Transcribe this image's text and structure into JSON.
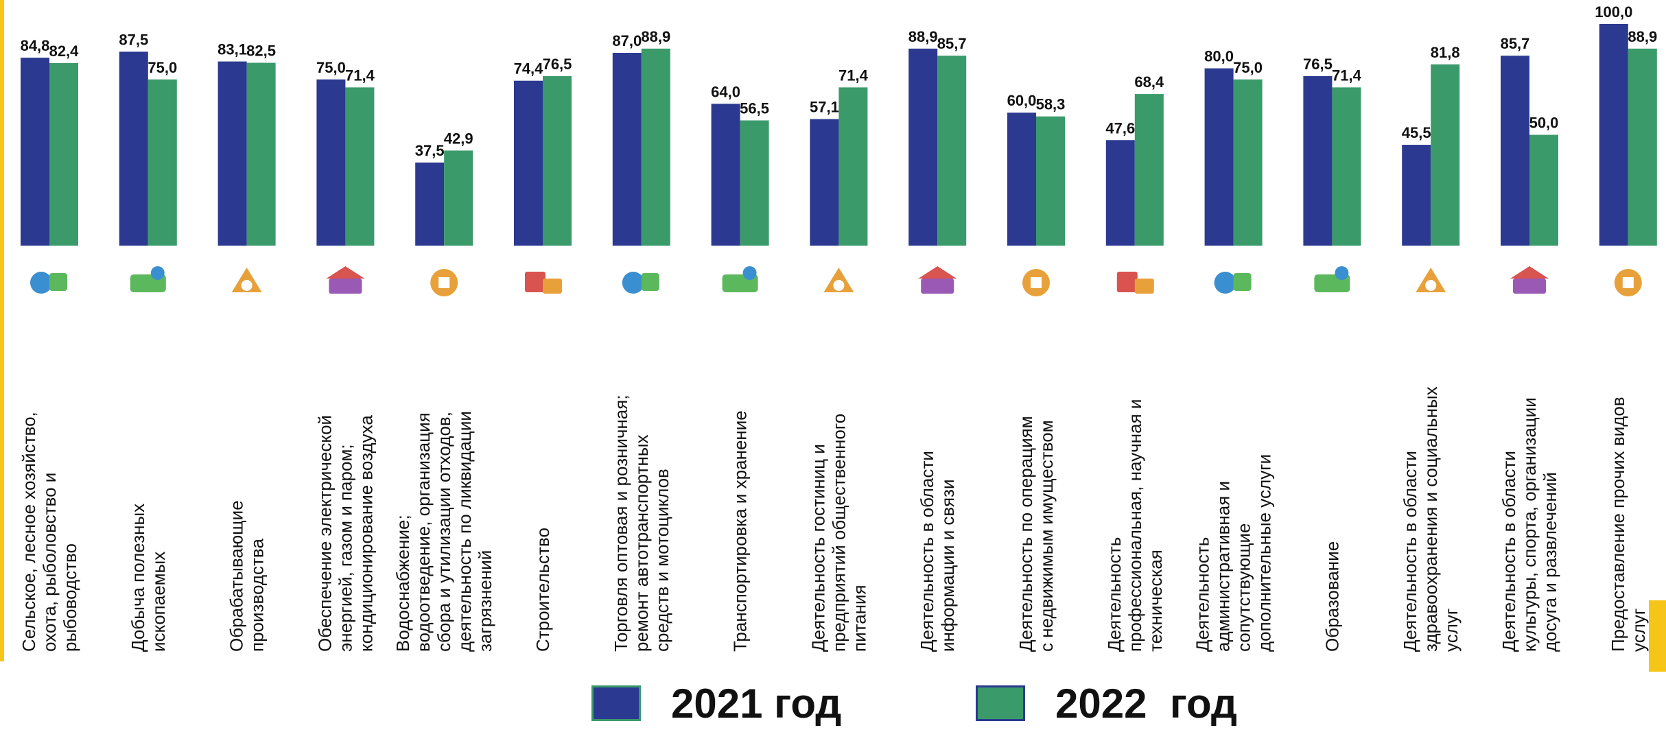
{
  "chart_data": {
    "type": "bar",
    "ylim": [
      0,
      100
    ],
    "categories": [
      "Сельское, лесное хозяйство, охота, рыболовство и рыбоводство",
      "Добыча полезных ископаемых",
      "Обрабатывающие производства",
      "Обеспечение электрической энергией, газом и паром; кондиционирование воздуха",
      "Водоснабжение; водоотведение, организация сбора и утилизации отходов, деятельность по ликвидации загрязнений",
      "Строительство",
      "Торговля оптовая и розничная; ремонт автотранспортных средств и мотоциклов",
      "Транспортировка и хранение",
      "Деятельность гостиниц и предприятий общественного питания",
      "Деятельность в области информации и связи",
      "Деятельность по операциям с недвижимым имуществом",
      "Деятельность профессиональная, научная и техническая",
      "Деятельность административная и сопутствующие дополнительные услуги",
      "Образование",
      "Деятельность в области здравоохранения и социальных услуг",
      "Деятельность в области культуры, спорта, организации досуга и развлечений",
      "Предоставление прочих видов услуг"
    ],
    "category_lines": [
      [
        "Сельское, лесное хозяйство,",
        "охота, рыболовство и",
        "рыбоводство"
      ],
      [
        "Добыча полезных",
        "ископаемых"
      ],
      [
        "Обрабатывающие",
        "производства"
      ],
      [
        "Обеспечение электрической",
        "энергией, газом и паром;",
        "кондиционирование воздуха"
      ],
      [
        "Водоснабжение;",
        "водоотведение, организация",
        "сбора и утилизации отходов,",
        "деятельность по ликвидации",
        "загрязнений"
      ],
      [
        "Строительство"
      ],
      [
        "Торговля оптовая и розничная;",
        "ремонт автотранспортных",
        "средств и мотоциклов"
      ],
      [
        "Транспортировка и хранение"
      ],
      [
        "Деятельность гостиниц и",
        "предприятий общественного",
        "питания"
      ],
      [
        "Деятельность в области",
        "информации и связи"
      ],
      [
        "Деятельность по операциям",
        "с недвижимым имуществом"
      ],
      [
        "Деятельность",
        "профессиональная, научная и",
        "техническая"
      ],
      [
        "Деятельность",
        "административная и",
        "сопутствующие",
        "дополнительные услуги"
      ],
      [
        "Образование"
      ],
      [
        "Деятельность в области",
        "здравоохранения и социальных",
        "услуг"
      ],
      [
        "Деятельность в области",
        "культуры, спорта, организации",
        "досуга и развлечений"
      ],
      [
        "Предоставление прочих видов",
        "услуг"
      ]
    ],
    "series": [
      {
        "name": "2021 год",
        "color": "#2b3990",
        "values": [
          84.8,
          87.5,
          83.1,
          75.0,
          37.5,
          74.4,
          87.0,
          64.0,
          57.1,
          88.9,
          60.0,
          47.6,
          80.0,
          76.5,
          45.5,
          85.7,
          100.0
        ],
        "labels": [
          "84,8",
          "87,5",
          "83,1",
          "75,0",
          "37,5",
          "74,4",
          "87,0",
          "64,0",
          "57,1",
          "88,9",
          "60,0",
          "47,6",
          "80,0",
          "76,5",
          "45,5",
          "85,7",
          "100,0"
        ]
      },
      {
        "name": "2022 год",
        "color": "#3a9a6a",
        "values": [
          82.4,
          75.0,
          82.5,
          71.4,
          42.9,
          76.5,
          88.9,
          56.5,
          71.4,
          85.7,
          58.3,
          68.4,
          75.0,
          71.4,
          81.8,
          50.0,
          88.9
        ],
        "labels": [
          "82,4",
          "75,0",
          "82,5",
          "71,4",
          "42,9",
          "76,5",
          "88,9",
          "56,5",
          "71,4",
          "85,7",
          "58,3",
          "68,4",
          "75,0",
          "71,4",
          "81,8",
          "50,0",
          "88,9"
        ]
      }
    ]
  },
  "icons": [
    "agriculture-fishing-icon",
    "mining-diamond-icon",
    "manufacturing-tools-icon",
    "energy-lightbulb-icon",
    "water-pipe-icon",
    "construction-brick-icon",
    "car-repair-icon",
    "transport-bus-icon",
    "hotel-food-icon",
    "communication-phone-icon",
    "real-estate-house-icon",
    "science-microscope-icon",
    "administration-building-icon",
    "education-cap-icon",
    "healthcare-stethoscope-icon",
    "culture-tickets-icon",
    "services-person-icon"
  ],
  "legend": {
    "items": [
      {
        "label": "2021 год",
        "color": "#2b3990"
      },
      {
        "label": "2022  год",
        "color": "#3a9a6a"
      }
    ]
  },
  "colors": {
    "accent": "#f5c518",
    "bar_2021": "#2b3990",
    "bar_2022": "#3a9a6a"
  }
}
